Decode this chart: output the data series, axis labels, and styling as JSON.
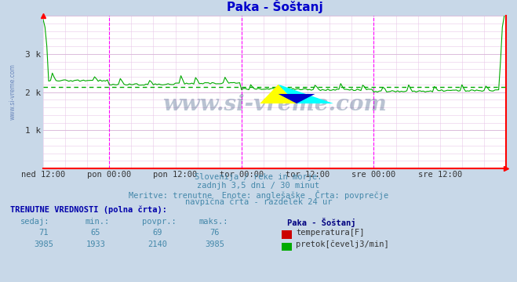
{
  "title": "Paka - Šoštanj",
  "title_color": "#0000cc",
  "bg_color": "#c8d8e8",
  "plot_bg_color": "#ffffff",
  "grid_color": "#d0b0d0",
  "vgrid_color": "#d0d0ff",
  "axis_color": "#ff0000",
  "watermark": "www.si-vreme.com",
  "watermark_color": "#1a3a6a",
  "left_label": "www.si-vreme.com",
  "subtitle_lines": [
    "Slovenija / reke in morje.",
    "zadnjh 3,5 dni / 30 minut",
    "Meritve: trenutne  Enote: anglešaške  Črta: povprečje",
    "navpična črta - razdelek 24 ur"
  ],
  "footer_bold": "TRENUTNE VREDNOSTI (polna črta):",
  "footer_headers": [
    "sedaj:",
    "min.:",
    "povpr.:",
    "maks.:"
  ],
  "footer_row1": [
    "71",
    "65",
    "69",
    "76"
  ],
  "footer_row2": [
    "3985",
    "1933",
    "2140",
    "3985"
  ],
  "footer_labels": [
    "Paka - Šoštanj",
    "temperatura[F]",
    "pretok[čevelj3/min]"
  ],
  "temp_color": "#cc0000",
  "flow_color": "#00aa00",
  "avg_color": "#00aa00",
  "vline_color": "#ff00ff",
  "xlim": [
    0,
    252
  ],
  "ylim": [
    0,
    4000
  ],
  "vline_positions": [
    36,
    108,
    180
  ],
  "avg_flow": 2140,
  "n_points": 252
}
